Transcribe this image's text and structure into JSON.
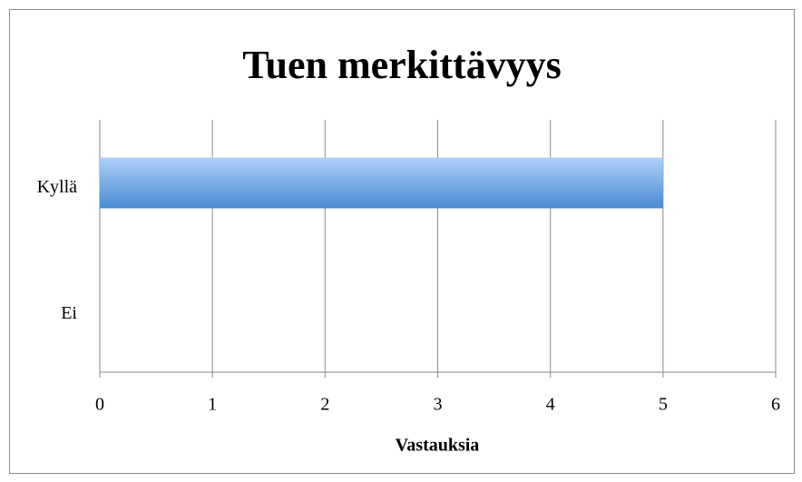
{
  "chart_data": {
    "type": "bar",
    "orientation": "horizontal",
    "title": "Tuen merkittävyys",
    "categories": [
      "Kyllä",
      "Ei"
    ],
    "values": [
      5,
      0
    ],
    "color": "#4a8ad4",
    "xlabel": "Vastauksia",
    "xlim": [
      0,
      6
    ],
    "xticks": [
      0,
      1,
      2,
      3,
      4,
      5,
      6
    ],
    "grid": true
  }
}
